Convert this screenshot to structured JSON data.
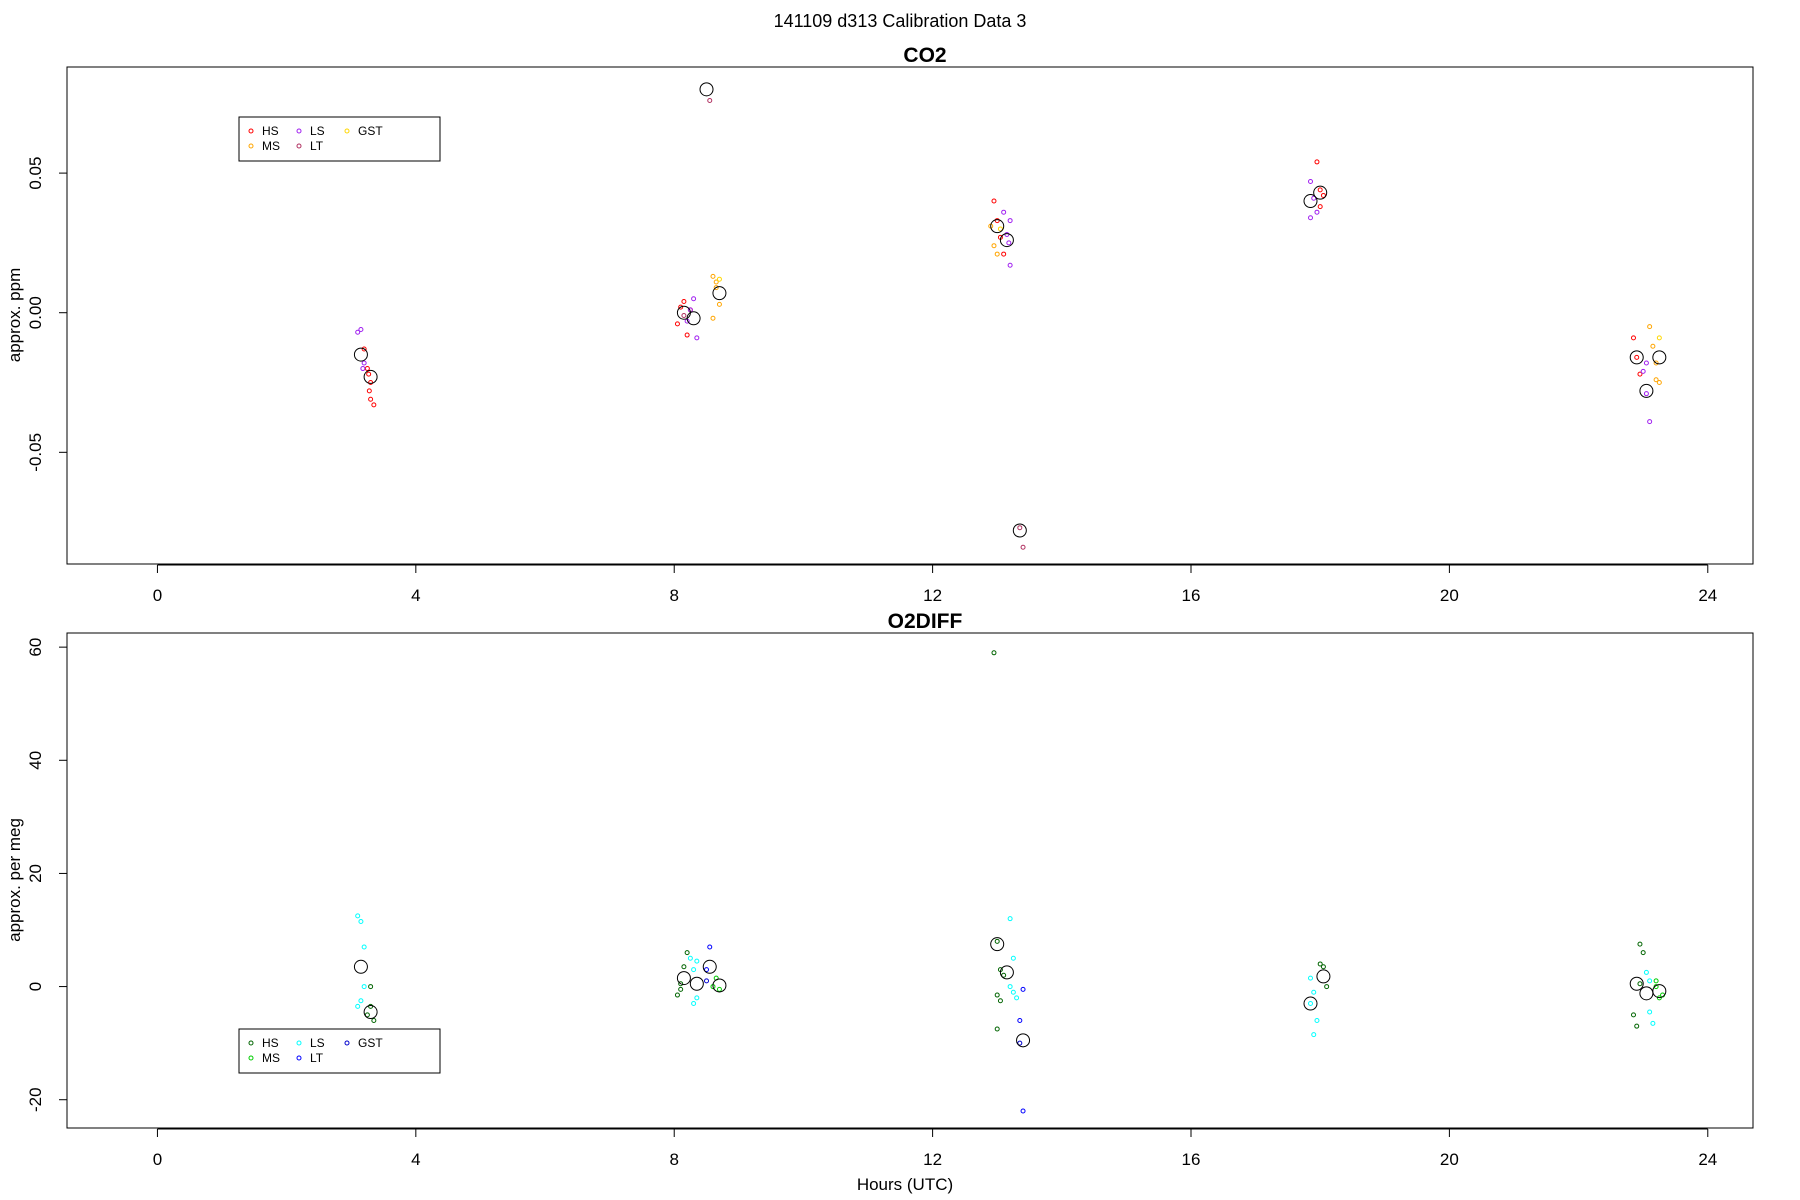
{
  "figure_title": "141109   d313   Calibration Data 3",
  "chart_data": [
    {
      "type": "scatter",
      "title": "CO2",
      "xlabel": "",
      "ylabel": "approx. ppm",
      "xlim": [
        -1.4,
        24.7
      ],
      "ylim": [
        -0.09,
        0.088
      ],
      "xticks": [
        "0",
        "4",
        "8",
        "12",
        "16",
        "20",
        "24"
      ],
      "yticks": [
        "-0.05",
        "0.00",
        "0.05"
      ],
      "legend": {
        "placement": "top-left",
        "entries": [
          {
            "label": "HS",
            "color": "#ff0000"
          },
          {
            "label": "MS",
            "color": "#ffa500"
          },
          {
            "label": "LS",
            "color": "#a020f0"
          },
          {
            "label": "LT",
            "color": "#b03060"
          },
          {
            "label": "GST",
            "color": "#ffd700"
          }
        ]
      },
      "series": [
        {
          "name": "HS",
          "color": "#ff0000",
          "points": [
            [
              3.2,
              -0.013
            ],
            [
              3.25,
              -0.02
            ],
            [
              3.3,
              -0.025
            ],
            [
              3.28,
              -0.028
            ],
            [
              3.35,
              -0.033
            ],
            [
              3.3,
              -0.031
            ],
            [
              3.27,
              -0.022
            ],
            [
              8.05,
              -0.004
            ],
            [
              8.1,
              0.002
            ],
            [
              8.15,
              0.004
            ],
            [
              8.2,
              -0.008
            ],
            [
              8.25,
              0.001
            ],
            [
              12.95,
              0.04
            ],
            [
              13.0,
              0.033
            ],
            [
              13.05,
              0.027
            ],
            [
              13.1,
              0.021
            ],
            [
              17.95,
              0.054
            ],
            [
              18.0,
              0.044
            ],
            [
              18.05,
              0.042
            ],
            [
              18.0,
              0.038
            ],
            [
              22.85,
              -0.009
            ],
            [
              22.9,
              -0.016
            ],
            [
              22.95,
              -0.022
            ]
          ]
        },
        {
          "name": "MS",
          "color": "#ffa500",
          "points": [
            [
              8.6,
              0.013
            ],
            [
              8.65,
              0.009
            ],
            [
              8.7,
              0.003
            ],
            [
              8.6,
              -0.002
            ],
            [
              8.65,
              0.011
            ],
            [
              12.9,
              0.031
            ],
            [
              12.95,
              0.024
            ],
            [
              13.0,
              0.021
            ],
            [
              23.1,
              -0.005
            ],
            [
              23.15,
              -0.012
            ],
            [
              23.2,
              -0.018
            ],
            [
              23.25,
              -0.025
            ],
            [
              23.2,
              -0.024
            ]
          ]
        },
        {
          "name": "LS",
          "color": "#a020f0",
          "points": [
            [
              3.15,
              -0.006
            ],
            [
              3.1,
              -0.007
            ],
            [
              3.2,
              -0.018
            ],
            [
              3.18,
              -0.02
            ],
            [
              8.25,
              0.001
            ],
            [
              8.3,
              0.005
            ],
            [
              8.35,
              -0.009
            ],
            [
              8.2,
              -0.003
            ],
            [
              13.1,
              0.036
            ],
            [
              13.15,
              0.028
            ],
            [
              13.2,
              0.033
            ],
            [
              13.2,
              0.017
            ],
            [
              13.18,
              0.025
            ],
            [
              17.85,
              0.047
            ],
            [
              17.9,
              0.041
            ],
            [
              17.85,
              0.034
            ],
            [
              17.95,
              0.036
            ],
            [
              23.0,
              -0.021
            ],
            [
              23.05,
              -0.029
            ],
            [
              23.1,
              -0.039
            ],
            [
              23.05,
              -0.018
            ]
          ]
        },
        {
          "name": "LT",
          "color": "#b03060",
          "points": [
            [
              8.55,
              0.076
            ],
            [
              13.4,
              -0.084
            ],
            [
              13.35,
              -0.077
            ],
            [
              8.15,
              -0.001
            ]
          ]
        },
        {
          "name": "GST",
          "color": "#ffd700",
          "points": [
            [
              8.7,
              0.012
            ],
            [
              13.05,
              0.03
            ],
            [
              23.25,
              -0.009
            ]
          ]
        }
      ],
      "means": [
        [
          3.15,
          -0.015
        ],
        [
          3.3,
          -0.023
        ],
        [
          8.15,
          0.0
        ],
        [
          8.3,
          -0.002
        ],
        [
          8.5,
          0.08
        ],
        [
          8.7,
          0.007
        ],
        [
          13.0,
          0.031
        ],
        [
          13.15,
          0.026
        ],
        [
          13.35,
          -0.078
        ],
        [
          17.85,
          0.04
        ],
        [
          18.0,
          0.043
        ],
        [
          22.9,
          -0.016
        ],
        [
          23.05,
          -0.028
        ],
        [
          23.25,
          -0.016
        ]
      ]
    },
    {
      "type": "scatter",
      "title": "O2DIFF",
      "xlabel": "Hours (UTC)",
      "ylabel": "approx. per meg",
      "xlim": [
        -1.4,
        24.7
      ],
      "ylim": [
        -25,
        62.5
      ],
      "xticks": [
        "0",
        "4",
        "8",
        "12",
        "16",
        "20",
        "24"
      ],
      "yticks": [
        "-20",
        "0",
        "20",
        "40",
        "60"
      ],
      "legend": {
        "placement": "bottom-left",
        "entries": [
          {
            "label": "HS",
            "color": "#006400"
          },
          {
            "label": "MS",
            "color": "#00cd00"
          },
          {
            "label": "LS",
            "color": "#00ffff"
          },
          {
            "label": "LT",
            "color": "#0000ff"
          },
          {
            "label": "GST",
            "color": "#0000cd"
          }
        ]
      },
      "series": [
        {
          "name": "HS",
          "color": "#006400",
          "points": [
            [
              3.3,
              -3.5
            ],
            [
              3.35,
              -6
            ],
            [
              3.3,
              0
            ],
            [
              3.25,
              -5
            ],
            [
              8.05,
              -1.5
            ],
            [
              8.1,
              0.5
            ],
            [
              8.15,
              3.5
            ],
            [
              8.2,
              6
            ],
            [
              8.1,
              -0.5
            ],
            [
              12.95,
              59
            ],
            [
              13.0,
              8
            ],
            [
              13.05,
              3
            ],
            [
              13.0,
              -1.5
            ],
            [
              13.05,
              -2.5
            ],
            [
              13.0,
              -7.5
            ],
            [
              13.1,
              2
            ],
            [
              18.0,
              4
            ],
            [
              18.05,
              3.5
            ],
            [
              18.1,
              0
            ],
            [
              22.85,
              -5
            ],
            [
              22.9,
              -7
            ],
            [
              22.95,
              7.5
            ],
            [
              23.0,
              6
            ],
            [
              22.95,
              0.5
            ]
          ]
        },
        {
          "name": "MS",
          "color": "#00cd00",
          "points": [
            [
              8.65,
              1.5
            ],
            [
              8.7,
              -0.5
            ],
            [
              8.6,
              0
            ],
            [
              23.2,
              1
            ],
            [
              23.25,
              -2
            ],
            [
              23.3,
              -1.5
            ],
            [
              23.2,
              0
            ]
          ]
        },
        {
          "name": "LS",
          "color": "#00ffff",
          "points": [
            [
              3.1,
              12.5
            ],
            [
              3.15,
              11.5
            ],
            [
              3.2,
              7
            ],
            [
              3.2,
              0
            ],
            [
              3.15,
              -2.5
            ],
            [
              3.1,
              -3.5
            ],
            [
              8.25,
              5
            ],
            [
              8.3,
              3
            ],
            [
              8.35,
              -2
            ],
            [
              8.3,
              -3
            ],
            [
              8.35,
              4.5
            ],
            [
              13.2,
              12
            ],
            [
              13.25,
              5
            ],
            [
              13.2,
              0
            ],
            [
              13.3,
              -2
            ],
            [
              13.25,
              -1
            ],
            [
              17.85,
              1.5
            ],
            [
              17.9,
              -1
            ],
            [
              17.95,
              -6
            ],
            [
              17.9,
              -8.5
            ],
            [
              17.85,
              -3
            ],
            [
              23.05,
              2.5
            ],
            [
              23.1,
              -4.5
            ],
            [
              23.15,
              -6.5
            ],
            [
              23.1,
              1
            ]
          ]
        },
        {
          "name": "LT",
          "color": "#0000ff",
          "points": [
            [
              8.55,
              7
            ],
            [
              8.5,
              3
            ],
            [
              13.4,
              -22
            ],
            [
              13.35,
              -6
            ],
            [
              13.4,
              -0.5
            ]
          ]
        },
        {
          "name": "GST",
          "color": "#0000cd",
          "points": [
            [
              8.5,
              1
            ],
            [
              13.35,
              -10
            ]
          ]
        }
      ],
      "means": [
        [
          3.15,
          3.5
        ],
        [
          3.3,
          -4.5
        ],
        [
          8.15,
          1.5
        ],
        [
          8.35,
          0.5
        ],
        [
          8.55,
          3.5
        ],
        [
          8.7,
          0.2
        ],
        [
          13.0,
          7.5
        ],
        [
          13.15,
          2.5
        ],
        [
          13.4,
          -9.5
        ],
        [
          17.85,
          -3
        ],
        [
          18.05,
          1.8
        ],
        [
          22.9,
          0.5
        ],
        [
          23.05,
          -1.2
        ],
        [
          23.25,
          -0.8
        ]
      ]
    }
  ]
}
